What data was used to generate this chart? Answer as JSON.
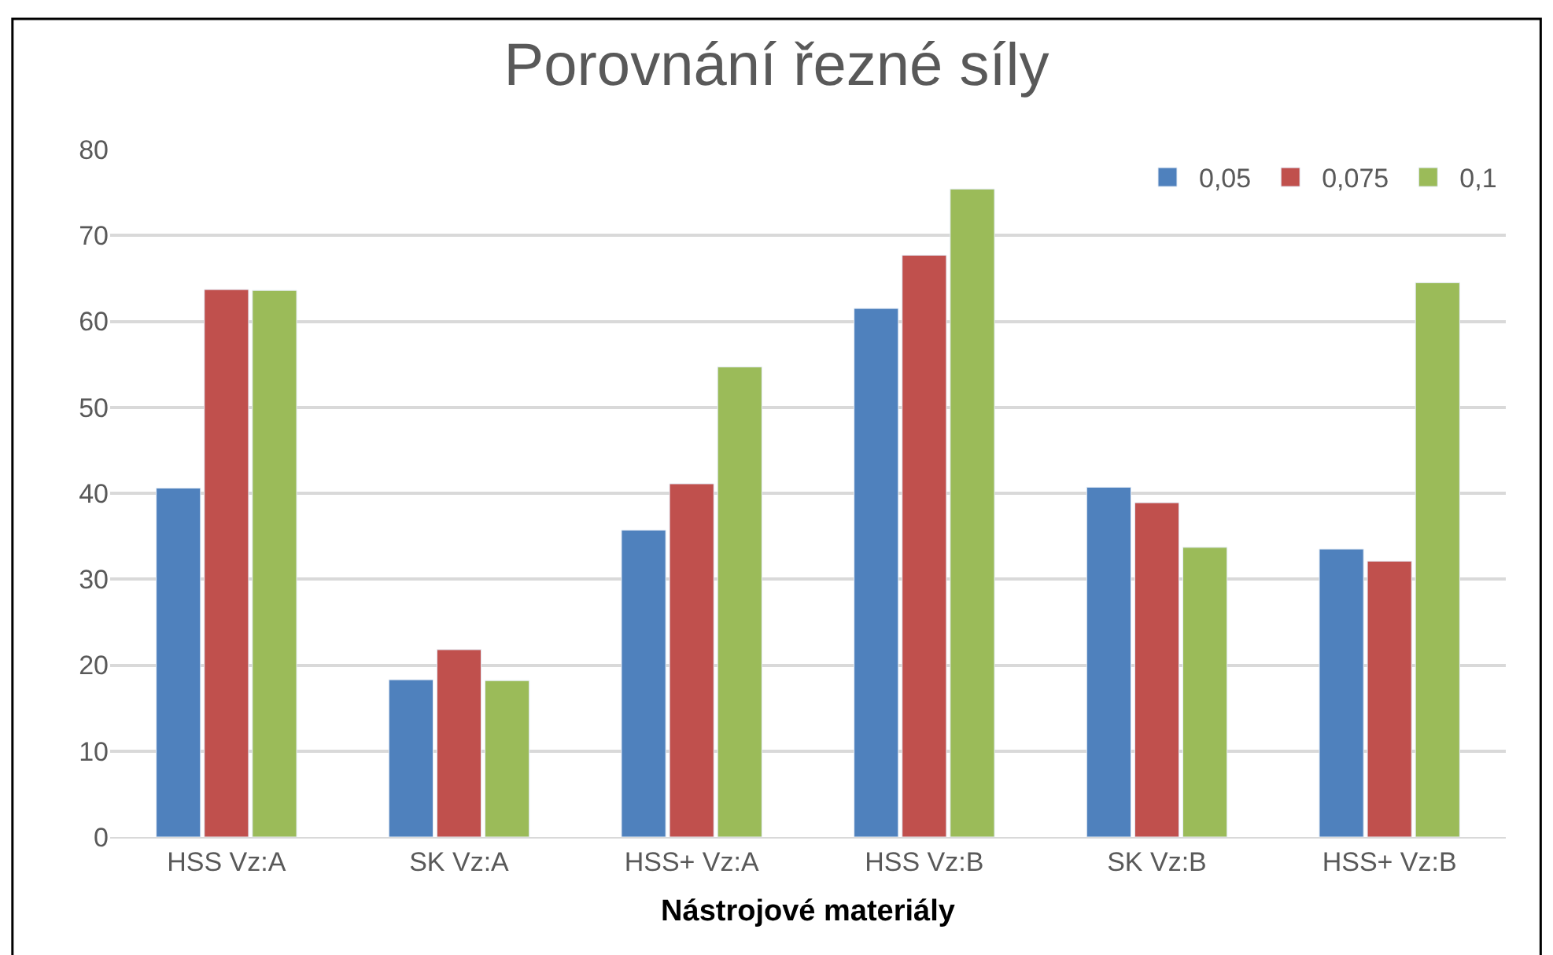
{
  "chart_data": {
    "type": "bar",
    "title": "Porovnání řezné síly",
    "xlabel": "Nástrojové materiály",
    "categories": [
      "HSS Vz:A",
      "SK Vz:A",
      "HSS+ Vz:A",
      "HSS Vz:B",
      "SK Vz:B",
      "HSS+ Vz:B"
    ],
    "series": [
      {
        "name": "0,05",
        "color": "#4f81bd",
        "values": [
          40.6,
          18.3,
          35.7,
          61.5,
          40.7,
          33.5
        ]
      },
      {
        "name": "0,075",
        "color": "#c0504d",
        "values": [
          63.7,
          21.8,
          41.1,
          67.7,
          38.9,
          32.1
        ]
      },
      {
        "name": "0,1",
        "color": "#9bbb59",
        "values": [
          63.6,
          18.2,
          54.7,
          75.4,
          33.7,
          64.5
        ]
      }
    ],
    "ylim": [
      0,
      80
    ],
    "yticks": [
      0,
      10,
      20,
      30,
      40,
      50,
      60,
      70,
      80
    ],
    "grid": "y",
    "legend": "top right"
  }
}
